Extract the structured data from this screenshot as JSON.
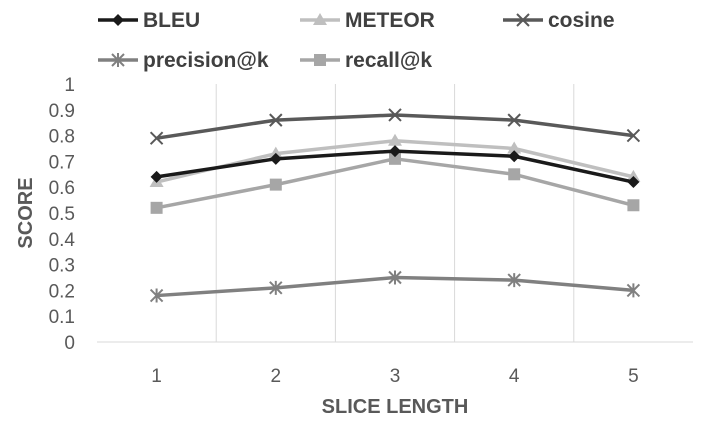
{
  "chart_data": {
    "type": "line",
    "title": "",
    "xlabel": "SLICE LENGTH",
    "ylabel": "SCORE",
    "x": [
      1,
      2,
      3,
      4,
      5
    ],
    "x_tick_labels": [
      "1",
      "2",
      "3",
      "4",
      "5"
    ],
    "ylim": [
      0,
      1
    ],
    "y_ticks": [
      0,
      0.1,
      0.2,
      0.3,
      0.4,
      0.5,
      0.6,
      0.7,
      0.8,
      0.9,
      1
    ],
    "y_tick_labels": [
      "0",
      "0.1",
      "0.2",
      "0.3",
      "0.4",
      "0.5",
      "0.6",
      "0.7",
      "0.8",
      "0.9",
      "1"
    ],
    "grid": "vertical",
    "legend_position": "top",
    "series": [
      {
        "name": "BLEU",
        "values": [
          0.64,
          0.71,
          0.74,
          0.72,
          0.62
        ],
        "color": "#1a1a1a",
        "marker": "diamond"
      },
      {
        "name": "METEOR",
        "values": [
          0.62,
          0.73,
          0.78,
          0.75,
          0.64
        ],
        "color": "#bfbfbf",
        "marker": "triangle"
      },
      {
        "name": "cosine",
        "values": [
          0.79,
          0.86,
          0.88,
          0.86,
          0.8
        ],
        "color": "#595959",
        "marker": "x"
      },
      {
        "name": "precision@k",
        "values": [
          0.18,
          0.21,
          0.25,
          0.24,
          0.2
        ],
        "color": "#808080",
        "marker": "star"
      },
      {
        "name": "recall@k",
        "values": [
          0.52,
          0.61,
          0.71,
          0.65,
          0.53
        ],
        "color": "#a6a6a6",
        "marker": "square"
      }
    ]
  }
}
